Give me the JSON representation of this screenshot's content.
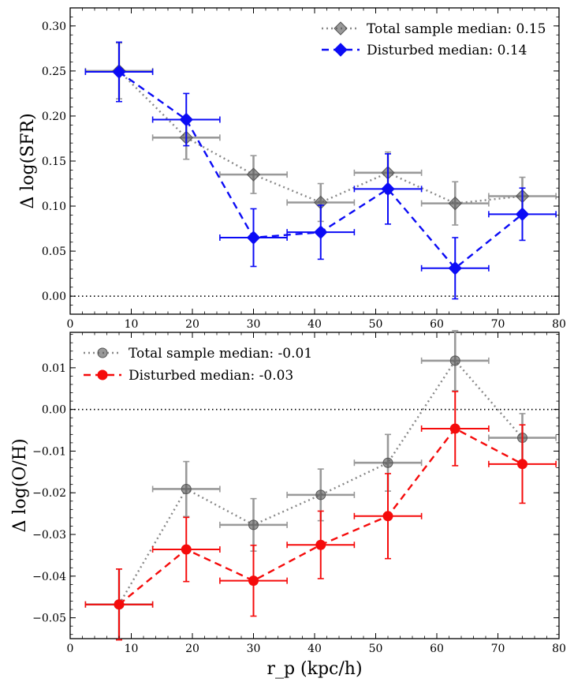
{
  "chart_data": [
    {
      "type": "line",
      "ylabel": "Δ log(SFR)",
      "xlabel": "",
      "xlim": [
        0,
        80
      ],
      "ylim": [
        -0.02,
        0.32
      ],
      "x_ticks": [
        0,
        10,
        20,
        30,
        40,
        50,
        60,
        70,
        80
      ],
      "x_tick_labels": [
        "0",
        "10",
        "20",
        "30",
        "40",
        "50",
        "60",
        "70",
        "80"
      ],
      "y_ticks": [
        0.0,
        0.05,
        0.1,
        0.15,
        0.2,
        0.25,
        0.3
      ],
      "y_tick_labels": [
        "0.00",
        "0.05",
        "0.10",
        "0.15",
        "0.20",
        "0.25",
        "0.30"
      ],
      "reference_line": {
        "y": 0.0,
        "style": "dotted"
      },
      "legend_position": "top-right",
      "series": [
        {
          "name": "Total sample median: 0.15",
          "color": "#555555",
          "errcolor": "#999999",
          "marker": "diamond",
          "linestyle": "dotted",
          "x": [
            8,
            19,
            30,
            41,
            52,
            63,
            74
          ],
          "xerr": [
            5.5,
            5.5,
            5.5,
            5.5,
            5.5,
            5.5,
            5.5
          ],
          "y": [
            0.25,
            0.176,
            0.135,
            0.104,
            0.137,
            0.103,
            0.111
          ],
          "yerr": [
            0.031,
            0.024,
            0.021,
            0.021,
            0.023,
            0.024,
            0.021
          ]
        },
        {
          "name": "Disturbed median: 0.14",
          "color": "#0b0bf5",
          "errcolor": "#0b0bf5",
          "marker": "diamond",
          "linestyle": "dashed",
          "x": [
            8,
            19,
            30,
            41,
            52,
            63,
            74
          ],
          "xerr": [
            5.5,
            5.5,
            5.5,
            5.5,
            5.5,
            5.5,
            5.5
          ],
          "y": [
            0.249,
            0.196,
            0.065,
            0.071,
            0.119,
            0.031,
            0.091
          ],
          "yerr": [
            0.033,
            0.029,
            0.032,
            0.03,
            0.039,
            0.034,
            0.029
          ]
        }
      ]
    },
    {
      "type": "line",
      "ylabel": "Δ log(O/H)",
      "xlabel": "r_p (kpc/h)",
      "xlim": [
        0,
        80
      ],
      "ylim": [
        -0.055,
        0.0185
      ],
      "x_ticks": [
        0,
        10,
        20,
        30,
        40,
        50,
        60,
        70,
        80
      ],
      "x_tick_labels": [
        "0",
        "10",
        "20",
        "30",
        "40",
        "50",
        "60",
        "70",
        "80"
      ],
      "y_ticks": [
        -0.05,
        -0.04,
        -0.03,
        -0.02,
        -0.01,
        0.0,
        0.01
      ],
      "y_tick_labels": [
        "−0.05",
        "−0.04",
        "−0.03",
        "−0.02",
        "−0.01",
        "0.00",
        "0.01"
      ],
      "reference_line": {
        "y": 0.0,
        "style": "dotted"
      },
      "legend_position": "top-left",
      "series": [
        {
          "name": "Total sample median: -0.01",
          "color": "#555555",
          "errcolor": "#999999",
          "marker": "circle",
          "linestyle": "dotted",
          "x": [
            8,
            19,
            30,
            41,
            52,
            63,
            74
          ],
          "xerr": [
            5.5,
            5.5,
            5.5,
            5.5,
            5.5,
            5.5,
            5.5
          ],
          "y": [
            -0.0468,
            -0.0191,
            -0.0277,
            -0.0205,
            -0.0128,
            0.0117,
            -0.0068
          ],
          "yerr": [
            0.0085,
            0.0066,
            0.0063,
            0.0062,
            0.0068,
            0.0072,
            0.0058
          ]
        },
        {
          "name": "Disturbed median: -0.03",
          "color": "#f50b0b",
          "errcolor": "#f50b0b",
          "marker": "circle",
          "linestyle": "dashed",
          "x": [
            8,
            19,
            30,
            41,
            52,
            63,
            74
          ],
          "xerr": [
            5.5,
            5.5,
            5.5,
            5.5,
            5.5,
            5.5,
            5.5
          ],
          "y": [
            -0.0468,
            -0.0336,
            -0.0411,
            -0.0325,
            -0.0256,
            -0.0046,
            -0.0131
          ],
          "yerr": [
            0.0085,
            0.0077,
            0.0085,
            0.0081,
            0.0102,
            0.0089,
            0.0094
          ]
        }
      ]
    }
  ]
}
